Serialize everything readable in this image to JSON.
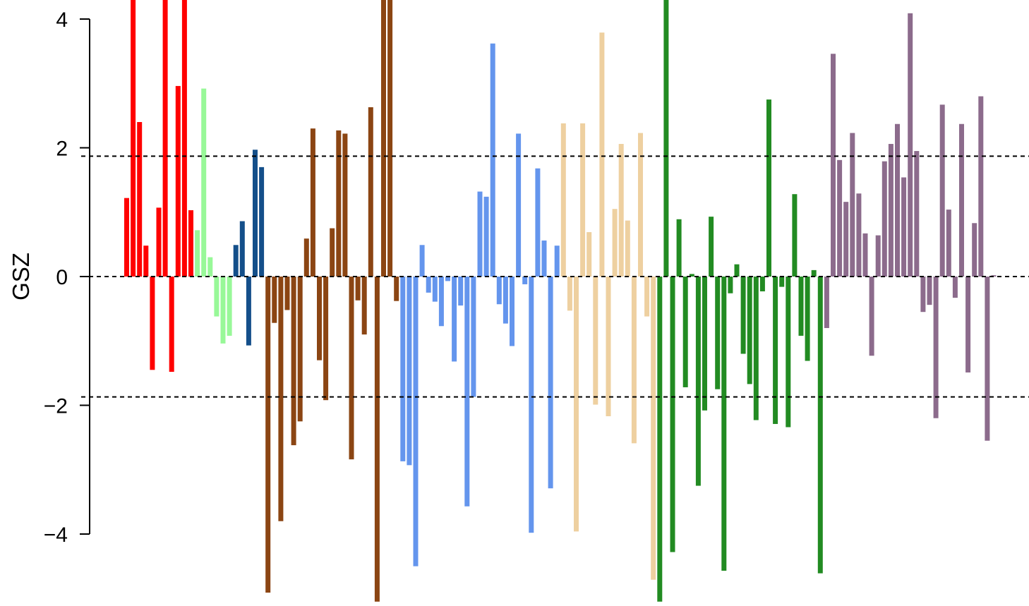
{
  "chart_data": {
    "type": "bar",
    "ylabel": "GSZ",
    "ylim": [
      -5.05,
      4.0
    ],
    "yticks": [
      -4,
      -2,
      0,
      2,
      4
    ],
    "ytick_labels": [
      "−4",
      "−2",
      "0",
      "2",
      "4"
    ],
    "reference_lines": [
      -1.87,
      0,
      1.87
    ],
    "grid": false,
    "legend": "none",
    "groups": [
      {
        "color": "#ff0000",
        "values": [
          1.22,
          4.5,
          2.4,
          0.48,
          -1.45,
          1.07,
          4.5,
          -1.48,
          2.96,
          4.5,
          1.03
        ]
      },
      {
        "color": "#98f898",
        "values": [
          0.72,
          2.92,
          0.3,
          -0.62,
          -1.04,
          -0.92
        ]
      },
      {
        "color": "#144f8a",
        "values": [
          0.49,
          0.86,
          -1.07,
          1.97,
          1.7
        ]
      },
      {
        "color": "#8b4513",
        "values": [
          -4.91,
          -0.72,
          -3.8,
          -0.52,
          -2.62,
          -2.25,
          0.59,
          2.3,
          -1.3,
          -1.92,
          0.75,
          2.27,
          2.22,
          -2.84,
          -0.37,
          -0.9,
          2.63,
          -5.05,
          4.5,
          4.5,
          -0.38
        ]
      },
      {
        "color": "#6495ed",
        "values": [
          -2.87,
          -2.93,
          -4.5,
          0.49,
          -0.25,
          -0.39,
          -0.77,
          -0.07,
          -1.32,
          -0.45,
          -3.57,
          -1.87,
          1.32,
          1.24,
          3.62,
          -0.43,
          -0.73,
          -1.08,
          2.22,
          -0.12,
          -3.98,
          1.68,
          0.56,
          -3.29,
          0.48
        ]
      },
      {
        "color": "#eed0a0",
        "values": [
          2.38,
          -0.53,
          -3.96,
          2.38,
          0.69,
          -1.99,
          3.79,
          -2.17,
          1.05,
          2.06,
          0.87,
          -2.59,
          2.23,
          -0.62,
          -4.71
        ]
      },
      {
        "color": "#228b22",
        "values": [
          -5.05,
          4.5,
          -4.28,
          0.89,
          -1.72,
          0.04,
          -3.25,
          -2.08,
          0.93,
          -1.75,
          -4.57,
          -0.26,
          0.19,
          -1.2,
          -1.67,
          -2.23,
          -0.23,
          2.75,
          -2.29,
          -0.16,
          -2.34,
          1.28,
          -0.92,
          -1.31,
          0.1,
          -4.61
        ]
      },
      {
        "color": "#8c6b8c",
        "values": [
          -0.8,
          3.46,
          1.81,
          1.16,
          2.23,
          1.29,
          0.67,
          -1.23,
          0.64,
          1.79,
          2.06,
          2.37,
          1.54,
          4.09,
          1.95,
          -0.55,
          -0.44,
          -2.2,
          2.67,
          1.04,
          -0.33,
          2.37,
          -1.49,
          0.83,
          2.8,
          -2.55,
          0.02
        ]
      }
    ]
  }
}
